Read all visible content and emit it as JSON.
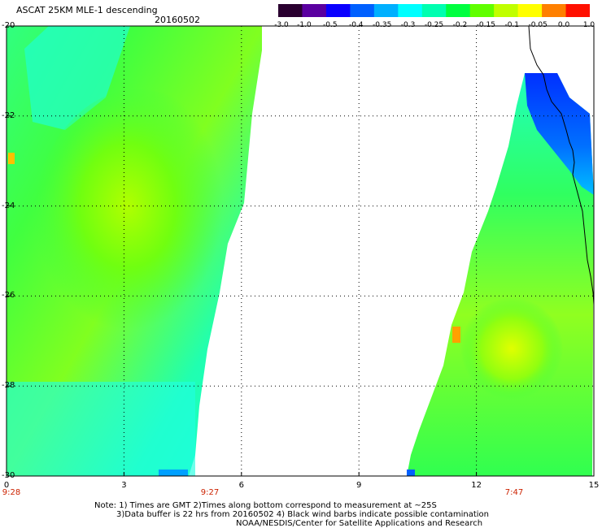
{
  "header": {
    "title": "ASCAT 25KM MLE-1 descending",
    "date": "20160502"
  },
  "colorbar": {
    "labels": [
      "-3.0",
      "-1.0",
      "-0.5",
      "-0.4",
      "-0.35",
      "-0.3",
      "-0.25",
      "-0.2",
      "-0.15",
      "-0.1",
      "-0.05",
      "0.0",
      "1.0"
    ],
    "colors": [
      "#2a0030",
      "#5a00a0",
      "#0a00ff",
      "#0060ff",
      "#00b0ff",
      "#00ffff",
      "#00ffb0",
      "#00ff40",
      "#60ff00",
      "#c0ff00",
      "#ffff00",
      "#ff8000",
      "#ff1000"
    ]
  },
  "axes": {
    "y_labels": [
      "-20",
      "-22",
      "-24",
      "-26",
      "-28",
      "-30"
    ],
    "x_labels": [
      "0",
      "3",
      "6",
      "9",
      "12",
      "15"
    ],
    "time_labels": [
      "9:28",
      "9:27",
      "7:47"
    ]
  },
  "footer": {
    "note_line1": "Note: 1) Times are GMT 2)Times along bottom correspond to measurement at ~25S",
    "note_line2": "3)Data buffer is 22 hrs from 20160502 4) Black wind barbs indicate possible contamination",
    "note_line3": "NOAA/NESDIS/Center for Satellite Applications and Research"
  }
}
